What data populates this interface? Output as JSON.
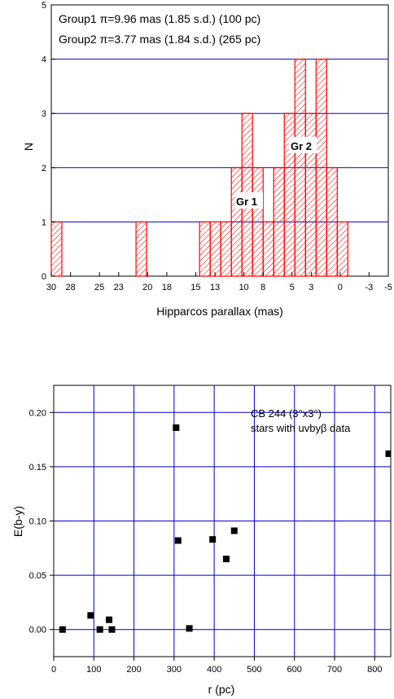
{
  "chart_data": [
    {
      "type": "bar",
      "xlabel": "Hipparcos parallax (mas)",
      "ylabel": "N",
      "xlim": [
        30,
        -5
      ],
      "ylim": [
        0,
        5
      ],
      "x_ticks": [
        30,
        28,
        25,
        23,
        20,
        18,
        15,
        13,
        10,
        8,
        5,
        3,
        0,
        -3,
        -5
      ],
      "y_ticks": [
        0,
        1,
        2,
        3,
        4,
        5
      ],
      "grid": "horizontal",
      "bars": [
        {
          "x0": 30.0,
          "x1": 28.9,
          "count": 1
        },
        {
          "x0": 21.2,
          "x1": 20.1,
          "count": 1
        },
        {
          "x0": 14.6,
          "x1": 13.5,
          "count": 1
        },
        {
          "x0": 13.5,
          "x1": 12.4,
          "count": 1
        },
        {
          "x0": 12.4,
          "x1": 11.3,
          "count": 1
        },
        {
          "x0": 11.3,
          "x1": 10.2,
          "count": 2
        },
        {
          "x0": 10.2,
          "x1": 9.1,
          "count": 3
        },
        {
          "x0": 9.1,
          "x1": 8.0,
          "count": 2
        },
        {
          "x0": 8.0,
          "x1": 6.9,
          "count": 1
        },
        {
          "x0": 6.9,
          "x1": 5.8,
          "count": 2
        },
        {
          "x0": 5.8,
          "x1": 4.7,
          "count": 3
        },
        {
          "x0": 4.7,
          "x1": 3.6,
          "count": 4
        },
        {
          "x0": 3.6,
          "x1": 2.5,
          "count": 3
        },
        {
          "x0": 2.5,
          "x1": 1.4,
          "count": 4
        },
        {
          "x0": 1.4,
          "x1": 0.3,
          "count": 2
        },
        {
          "x0": 0.3,
          "x1": -0.8,
          "count": 1
        }
      ],
      "annotations": [
        {
          "id": "group1",
          "text": "Group1 π=9.96 mas (1.85 s.d.) (100 pc)"
        },
        {
          "id": "group2",
          "text": "Group2 π=3.77 mas (1.84 s.d.) (265 pc)"
        },
        {
          "id": "gr1",
          "text": "Gr 1"
        },
        {
          "id": "gr2",
          "text": "Gr 2"
        }
      ],
      "colors": {
        "bars": "#ff0000",
        "grid": "#0000cc"
      }
    },
    {
      "type": "scatter",
      "xlabel": "r (pc)",
      "ylabel": "E(b-y)",
      "xlim": [
        0,
        840
      ],
      "ylim": [
        -0.025,
        0.225
      ],
      "x_ticks": [
        0,
        100,
        200,
        300,
        400,
        500,
        600,
        700,
        800
      ],
      "y_ticks": [
        "0.00",
        "0.05",
        "0.10",
        "0.15",
        "0.20"
      ],
      "grid": "both",
      "points": [
        {
          "x": 22,
          "y": 0.0
        },
        {
          "x": 92,
          "y": 0.013
        },
        {
          "x": 115,
          "y": 0.0
        },
        {
          "x": 138,
          "y": 0.009
        },
        {
          "x": 145,
          "y": 0.0
        },
        {
          "x": 305,
          "y": 0.186
        },
        {
          "x": 310,
          "y": 0.082
        },
        {
          "x": 338,
          "y": 0.001
        },
        {
          "x": 396,
          "y": 0.083
        },
        {
          "x": 430,
          "y": 0.065
        },
        {
          "x": 450,
          "y": 0.091
        },
        {
          "x": 835,
          "y": 0.162
        }
      ],
      "annotations": [
        {
          "id": "cb244",
          "text": "CB 244 (3°x3°)"
        },
        {
          "id": "stars",
          "text": "stars with uvbyβ data"
        }
      ],
      "colors": {
        "points": "#000000",
        "grid": "#0000cc"
      }
    }
  ]
}
